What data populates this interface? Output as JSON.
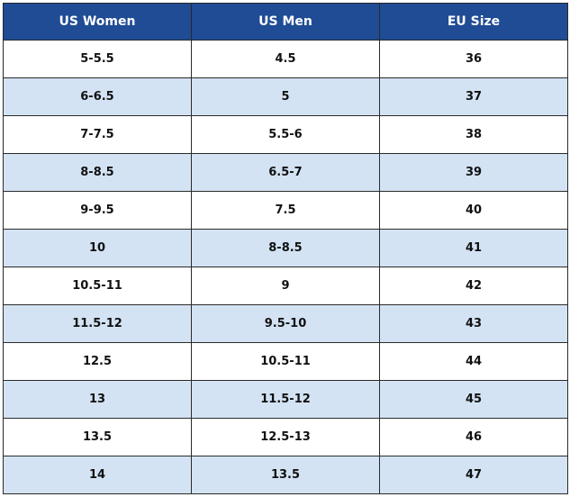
{
  "table": {
    "headers": [
      "US Women",
      "US Men",
      "EU Size"
    ],
    "rows": [
      [
        "5-5.5",
        "4.5",
        "36"
      ],
      [
        "6-6.5",
        "5",
        "37"
      ],
      [
        "7-7.5",
        "5.5-6",
        "38"
      ],
      [
        "8-8.5",
        "6.5-7",
        "39"
      ],
      [
        "9-9.5",
        "7.5",
        "40"
      ],
      [
        "10",
        "8-8.5",
        "41"
      ],
      [
        "10.5-11",
        "9",
        "42"
      ],
      [
        "11.5-12",
        "9.5-10",
        "43"
      ],
      [
        "12.5",
        "10.5-11",
        "44"
      ],
      [
        "13",
        "11.5-12",
        "45"
      ],
      [
        "13.5",
        "12.5-13",
        "46"
      ],
      [
        "14",
        "13.5",
        "47"
      ]
    ]
  },
  "colors": {
    "header_bg": "#1f4c94",
    "header_text": "#ffffff",
    "alt_row_bg": "#d3e3f4",
    "row_bg": "#ffffff",
    "border": "#2a2a2a"
  }
}
